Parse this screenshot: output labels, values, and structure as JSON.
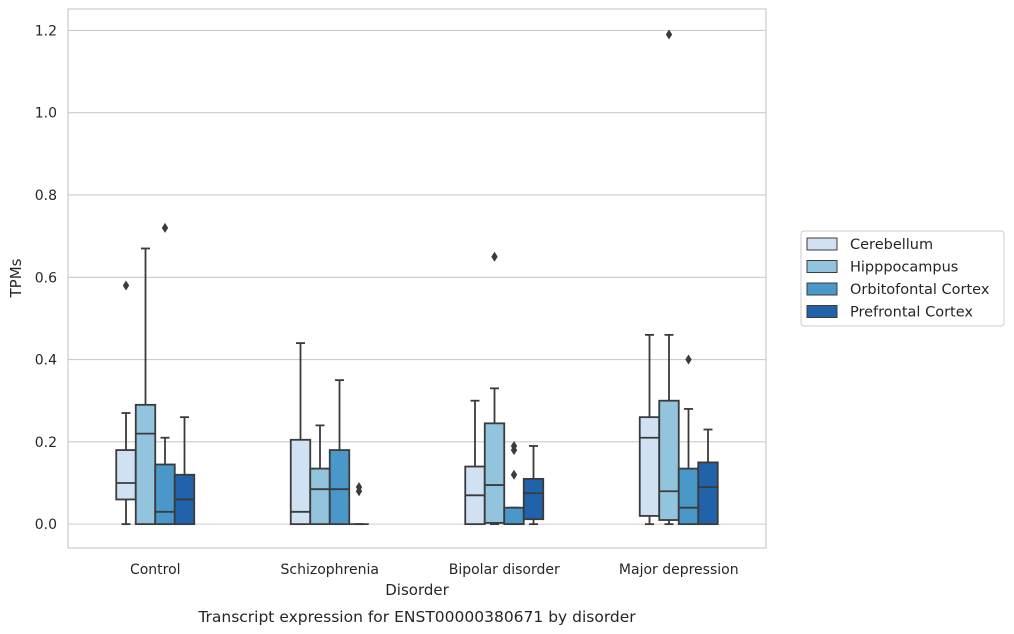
{
  "chart_data": {
    "type": "box",
    "caption": "Transcript expression for ENST00000380671 by disorder",
    "xlabel": "Disorder",
    "ylabel": "TPMs",
    "ylim": [
      -0.058,
      1.252
    ],
    "yticks": [
      "0.0",
      "0.2",
      "0.4",
      "0.6",
      "0.8",
      "1.0",
      "1.2"
    ],
    "grid": "horizontal",
    "legend_position": "right",
    "categories": [
      "Control",
      "Schizophrenia",
      "Bipolar disorder",
      "Major depression"
    ],
    "series": [
      {
        "name": "Cerebellum",
        "color": "#cfe1f2",
        "boxes": [
          {
            "min": 0.0,
            "q1": 0.06,
            "median": 0.1,
            "q3": 0.18,
            "max": 0.27,
            "outliers": [
              0.58
            ]
          },
          {
            "min": 0.0,
            "q1": 0.0,
            "median": 0.03,
            "q3": 0.205,
            "max": 0.44,
            "outliers": []
          },
          {
            "min": 0.0,
            "q1": 0.0,
            "median": 0.07,
            "q3": 0.14,
            "max": 0.3,
            "outliers": []
          },
          {
            "min": 0.0,
            "q1": 0.02,
            "median": 0.21,
            "q3": 0.26,
            "max": 0.46,
            "outliers": []
          }
        ]
      },
      {
        "name": "Hipppocampus",
        "color": "#93c4de",
        "boxes": [
          {
            "min": 0.0,
            "q1": 0.0,
            "median": 0.22,
            "q3": 0.29,
            "max": 0.67,
            "outliers": []
          },
          {
            "min": 0.0,
            "q1": 0.0,
            "median": 0.085,
            "q3": 0.135,
            "max": 0.24,
            "outliers": []
          },
          {
            "min": 0.0,
            "q1": 0.003,
            "median": 0.095,
            "q3": 0.245,
            "max": 0.33,
            "outliers": [
              0.65
            ]
          },
          {
            "min": 0.0,
            "q1": 0.01,
            "median": 0.08,
            "q3": 0.3,
            "max": 0.46,
            "outliers": [
              1.19
            ]
          }
        ]
      },
      {
        "name": "Orbitofontal Cortex",
        "color": "#4a98c9",
        "boxes": [
          {
            "min": 0.0,
            "q1": 0.0,
            "median": 0.03,
            "q3": 0.145,
            "max": 0.21,
            "outliers": [
              0.72
            ]
          },
          {
            "min": 0.0,
            "q1": 0.0,
            "median": 0.085,
            "q3": 0.18,
            "max": 0.35,
            "outliers": []
          },
          {
            "min": 0.0,
            "q1": 0.0,
            "median": 0.0,
            "q3": 0.04,
            "max": 0.04,
            "outliers": [
              0.12,
              0.18,
              0.19
            ]
          },
          {
            "min": 0.0,
            "q1": 0.0,
            "median": 0.04,
            "q3": 0.135,
            "max": 0.28,
            "outliers": [
              0.4
            ]
          }
        ]
      },
      {
        "name": "Prefrontal Cortex",
        "color": "#2163aa",
        "boxes": [
          {
            "min": 0.0,
            "q1": 0.0,
            "median": 0.06,
            "q3": 0.12,
            "max": 0.26,
            "outliers": []
          },
          {
            "min": 0.0,
            "q1": 0.0,
            "median": 0.0,
            "q3": 0.0,
            "max": 0.0,
            "outliers": [
              0.08,
              0.09
            ]
          },
          {
            "min": 0.0,
            "q1": 0.012,
            "median": 0.075,
            "q3": 0.11,
            "max": 0.19,
            "outliers": []
          },
          {
            "min": 0.0,
            "q1": 0.0,
            "median": 0.09,
            "q3": 0.15,
            "max": 0.23,
            "outliers": []
          }
        ]
      }
    ]
  }
}
